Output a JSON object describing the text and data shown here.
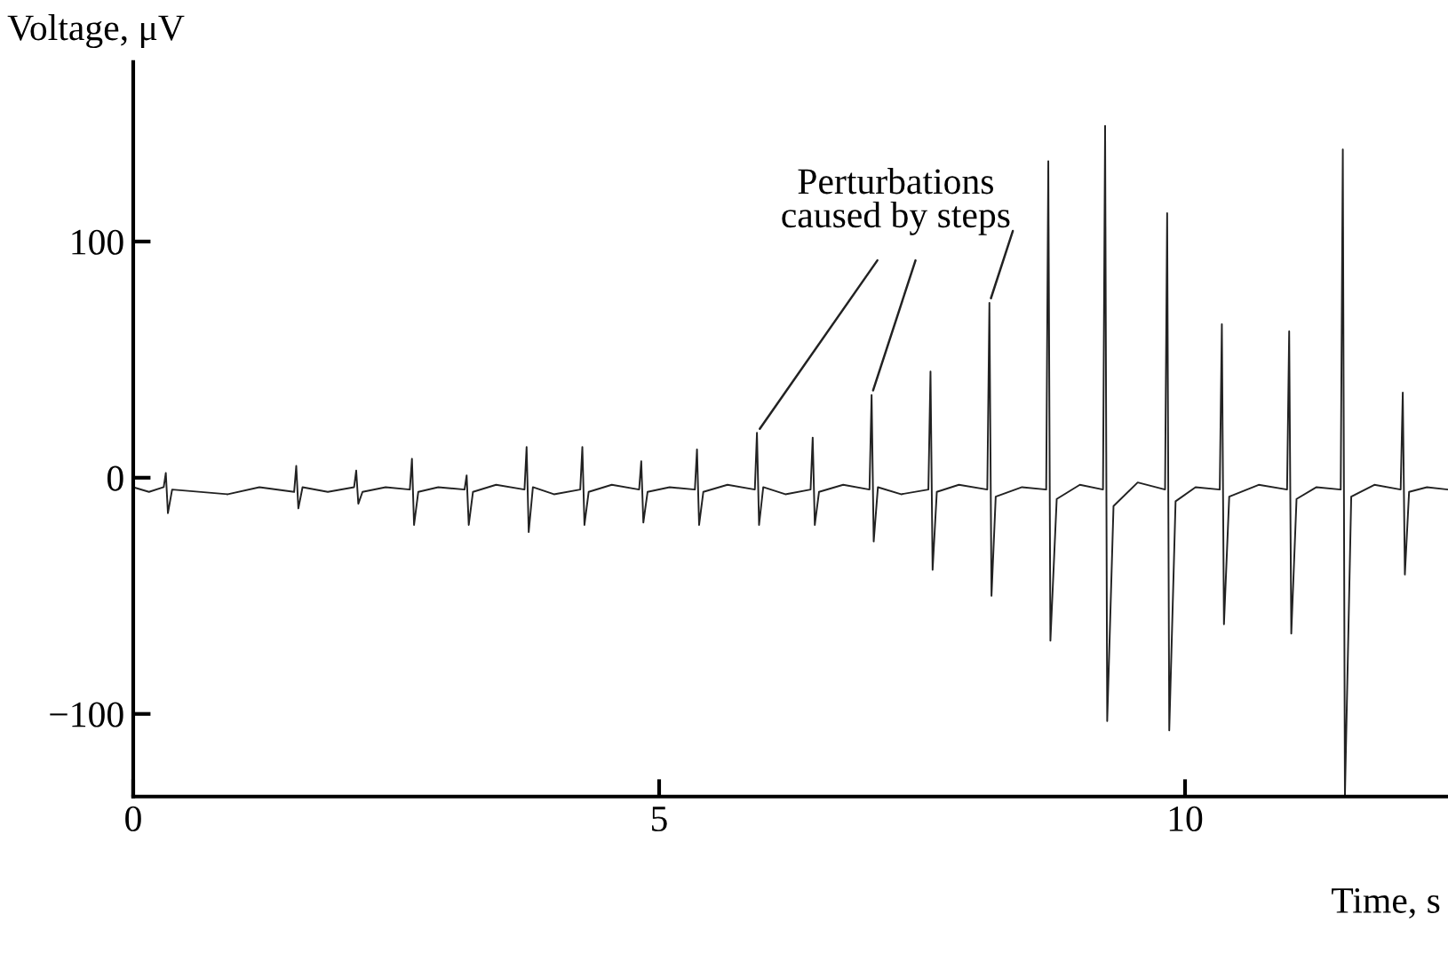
{
  "chart_data": {
    "type": "line",
    "xlabel": "Time, s",
    "ylabel": "Voltage, μV",
    "xlim": [
      0,
      12.5
    ],
    "ylim": [
      -135,
      176
    ],
    "xticks": [
      0,
      5,
      10
    ],
    "yticks": [
      -100,
      0,
      100
    ],
    "grid": false,
    "legend": false,
    "marker": "none",
    "line_style": "solid",
    "annotations": [
      {
        "text": "Perturbations\ncaused by steps",
        "x": 7.02,
        "y": 35
      }
    ],
    "series": [
      {
        "color": "#222222",
        "x": [
          0,
          0.15,
          0.29,
          0.31,
          0.33,
          0.37,
          0.9,
          1.2,
          1.53,
          1.55,
          1.57,
          1.61,
          1.85,
          2.1,
          2.12,
          2.14,
          2.18,
          2.4,
          2.63,
          2.65,
          2.67,
          2.71,
          2.9,
          3.15,
          3.17,
          3.19,
          3.23,
          3.45,
          3.72,
          3.74,
          3.76,
          3.8,
          4.0,
          4.25,
          4.27,
          4.29,
          4.33,
          4.55,
          4.81,
          4.83,
          4.85,
          4.89,
          5.1,
          5.34,
          5.36,
          5.38,
          5.42,
          5.65,
          5.91,
          5.93,
          5.95,
          5.99,
          6.2,
          6.44,
          6.46,
          6.48,
          6.52,
          6.75,
          7.0,
          7.02,
          7.04,
          7.08,
          7.3,
          7.56,
          7.58,
          7.6,
          7.64,
          7.85,
          8.12,
          8.14,
          8.16,
          8.2,
          8.45,
          8.68,
          8.7,
          8.72,
          8.78,
          9.0,
          9.22,
          9.24,
          9.26,
          9.32,
          9.55,
          9.81,
          9.83,
          9.85,
          9.91,
          10.1,
          10.33,
          10.35,
          10.37,
          10.42,
          10.7,
          10.97,
          10.99,
          11.01,
          11.06,
          11.25,
          11.48,
          11.5,
          11.52,
          11.58,
          11.8,
          12.05,
          12.07,
          12.09,
          12.13,
          12.3,
          12.5
        ],
        "values": [
          -4,
          -6,
          -4,
          2,
          -15,
          -5,
          -7,
          -4,
          -6,
          5,
          -13,
          -4,
          -6,
          -4,
          3,
          -11,
          -6,
          -4,
          -5,
          8,
          -20,
          -6,
          -4,
          -5,
          1,
          -20,
          -6,
          -3,
          -5,
          13,
          -23,
          -4,
          -7,
          -5,
          13,
          -20,
          -6,
          -3,
          -5,
          7,
          -19,
          -6,
          -4,
          -5,
          12,
          -20,
          -6,
          -3,
          -5,
          19,
          -20,
          -4,
          -7,
          -5,
          17,
          -20,
          -6,
          -3,
          -5,
          35,
          -27,
          -4,
          -7,
          -5,
          45,
          -39,
          -6,
          -3,
          -5,
          74,
          -50,
          -8,
          -4,
          -5,
          134,
          -69,
          -9,
          -3,
          -5,
          149,
          -103,
          -12,
          -2,
          -5,
          112,
          -107,
          -10,
          -4,
          -5,
          65,
          -62,
          -8,
          -3,
          -5,
          62,
          -66,
          -9,
          -4,
          -5,
          139,
          -135,
          -8,
          -3,
          -5,
          36,
          -41,
          -6,
          -4,
          -5
        ]
      }
    ]
  }
}
